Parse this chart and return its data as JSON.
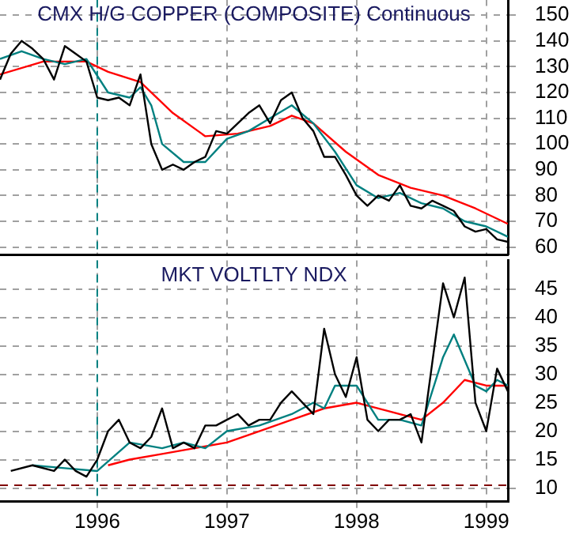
{
  "chart_data": [
    {
      "type": "line",
      "title": "CMX H/G COPPER (COMPOSITE) Continuous",
      "xlim": [
        "1995-04",
        "1999-03"
      ],
      "xticks": [
        "1996",
        "1997",
        "1998",
        "1999"
      ],
      "ylim": [
        57,
        156
      ],
      "yticks": [
        60,
        70,
        80,
        90,
        100,
        110,
        120,
        130,
        140,
        150
      ],
      "tick_labels": "y",
      "grid": true,
      "legend": false,
      "marker": "none",
      "line_style": "solid",
      "ref_lines": [
        {
          "axis": "x",
          "value": "1996",
          "color": "#008080",
          "line_style": "dashed"
        }
      ],
      "series": [
        {
          "color": "#000000",
          "x": [
            "1995-04",
            "1995-05",
            "1995-06",
            "1995-07",
            "1995-08",
            "1995-09",
            "1995-10",
            "1995-11",
            "1995-12",
            "1996-01",
            "1996-02",
            "1996-03",
            "1996-04",
            "1996-05",
            "1996-06",
            "1996-07",
            "1996-08",
            "1996-09",
            "1996-10",
            "1996-11",
            "1996-12",
            "1997-01",
            "1997-02",
            "1997-03",
            "1997-04",
            "1997-05",
            "1997-06",
            "1997-07",
            "1997-08",
            "1997-09",
            "1997-10",
            "1997-11",
            "1997-12",
            "1998-01",
            "1998-02",
            "1998-03",
            "1998-04",
            "1998-05",
            "1998-06",
            "1998-07",
            "1998-08",
            "1998-09",
            "1998-10",
            "1998-11",
            "1998-12",
            "1999-01",
            "1999-02",
            "1999-03"
          ],
          "values": [
            125,
            135,
            140,
            137,
            133,
            125,
            138,
            135,
            132,
            118,
            117,
            118,
            115,
            127,
            100,
            90,
            92,
            90,
            93,
            95,
            105,
            104,
            108,
            112,
            115,
            108,
            117,
            120,
            110,
            105,
            95,
            95,
            88,
            80,
            76,
            80,
            78,
            84,
            76,
            75,
            78,
            76,
            74,
            68,
            66,
            67,
            63,
            62
          ]
        },
        {
          "color": "#008080",
          "x": [
            "1995-04",
            "1995-06",
            "1995-08",
            "1995-10",
            "1995-12",
            "1996-02",
            "1996-04",
            "1996-05",
            "1996-06",
            "1996-07",
            "1996-09",
            "1996-11",
            "1997-01",
            "1997-03",
            "1997-05",
            "1997-07",
            "1997-09",
            "1997-11",
            "1998-01",
            "1998-03",
            "1998-05",
            "1998-07",
            "1998-09",
            "1998-11",
            "1999-01",
            "1999-03"
          ],
          "values": [
            133,
            136,
            133,
            131,
            133,
            120,
            118,
            122,
            115,
            100,
            93,
            93,
            102,
            105,
            110,
            115,
            108,
            97,
            84,
            79,
            81,
            77,
            75,
            70,
            68,
            64
          ]
        },
        {
          "color": "#ff0000",
          "x": [
            "1995-04",
            "1995-08",
            "1995-12",
            "1996-02",
            "1996-05",
            "1996-08",
            "1996-11",
            "1997-02",
            "1997-05",
            "1997-07",
            "1997-09",
            "1997-12",
            "1998-03",
            "1998-06",
            "1998-09",
            "1998-12",
            "1999-03"
          ],
          "values": [
            127,
            132,
            132,
            128,
            124,
            112,
            103,
            104,
            107,
            111,
            108,
            97,
            88,
            83,
            80,
            75,
            69
          ]
        }
      ]
    },
    {
      "type": "line",
      "title": "MKT VOLTLTY NDX",
      "xlim": [
        "1995-04",
        "1999-03"
      ],
      "xticks": [
        "1996",
        "1997",
        "1998",
        "1999"
      ],
      "ylim": [
        7.6,
        50
      ],
      "yticks": [
        10,
        15,
        20,
        25,
        30,
        35,
        40,
        45
      ],
      "grid": true,
      "legend": false,
      "marker": "none",
      "line_style": "solid",
      "ref_lines": [
        {
          "axis": "x",
          "value": "1996",
          "color": "#008080",
          "line_style": "dashed"
        },
        {
          "axis": "y",
          "value": 10.5,
          "color": "#800000",
          "line_style": "dashed"
        }
      ],
      "series": [
        {
          "color": "#000000",
          "x": [
            "1995-05",
            "1995-07",
            "1995-09",
            "1995-10",
            "1995-11",
            "1995-12",
            "1996-01",
            "1996-02",
            "1996-03",
            "1996-04",
            "1996-05",
            "1996-06",
            "1996-07",
            "1996-08",
            "1996-09",
            "1996-10",
            "1996-11",
            "1996-12",
            "1997-01",
            "1997-02",
            "1997-03",
            "1997-04",
            "1997-05",
            "1997-06",
            "1997-07",
            "1997-08",
            "1997-09",
            "1997-10",
            "1997-11",
            "1997-12",
            "1998-01",
            "1998-02",
            "1998-03",
            "1998-04",
            "1998-05",
            "1998-06",
            "1998-07",
            "1998-08",
            "1998-09",
            "1998-10",
            "1998-11",
            "1998-12",
            "1999-01",
            "1999-02",
            "1999-03"
          ],
          "values": [
            13,
            14,
            13,
            15,
            13,
            12,
            15,
            20,
            22,
            18,
            17,
            19,
            24,
            17,
            18,
            17,
            21,
            21,
            22,
            23,
            21,
            22,
            22,
            25,
            27,
            25,
            23,
            38,
            30,
            26,
            33,
            22,
            20,
            22,
            22,
            23,
            18,
            32,
            46,
            40,
            47,
            25,
            20,
            31,
            27
          ]
        },
        {
          "color": "#008080",
          "x": [
            "1995-07",
            "1995-10",
            "1996-01",
            "1996-04",
            "1996-07",
            "1996-09",
            "1996-11",
            "1997-01",
            "1997-04",
            "1997-07",
            "1997-09",
            "1997-10",
            "1997-11",
            "1998-01",
            "1998-03",
            "1998-05",
            "1998-07",
            "1998-09",
            "1998-10",
            "1998-12",
            "1999-01",
            "1999-02",
            "1999-03"
          ],
          "values": [
            14,
            13.5,
            13,
            18,
            17,
            18,
            17,
            20,
            21,
            23,
            25,
            24,
            28,
            28,
            22,
            22,
            21,
            33,
            37,
            28,
            27,
            29,
            28
          ]
        },
        {
          "color": "#ff0000",
          "x": [
            "1996-02",
            "1996-04",
            "1996-07",
            "1996-10",
            "1997-01",
            "1997-04",
            "1997-07",
            "1997-10",
            "1998-01",
            "1998-04",
            "1998-07",
            "1998-09",
            "1998-11",
            "1999-01",
            "1999-03"
          ],
          "values": [
            14,
            15,
            16,
            17,
            18,
            20,
            22,
            24,
            25,
            23.5,
            22,
            25,
            29,
            28,
            28
          ]
        }
      ]
    }
  ]
}
